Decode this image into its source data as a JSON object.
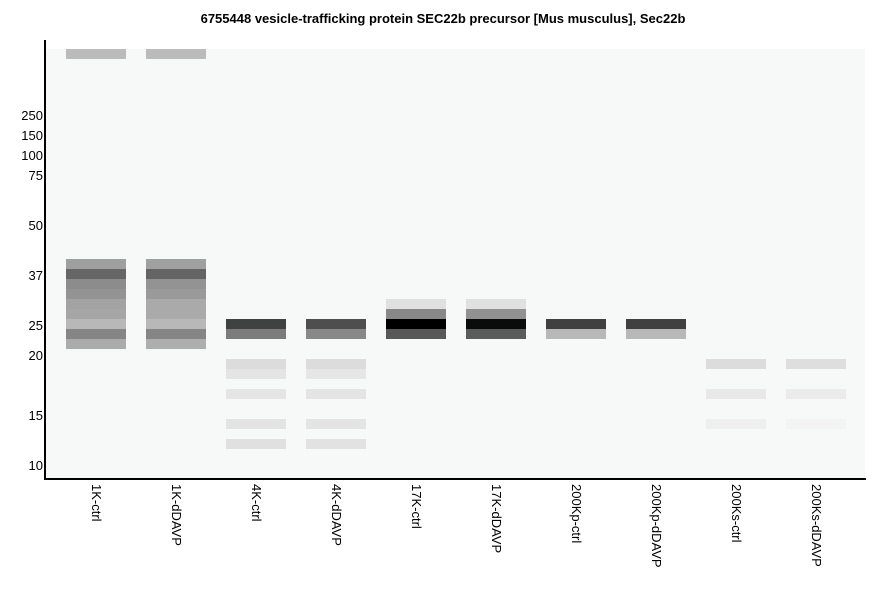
{
  "chart_data": {
    "type": "table",
    "title": "6755448 vesicle-trafficking protein SEC22b precursor [Mus musculus], Sec22b",
    "y_ticks": [
      "250",
      "150",
      "100",
      "75",
      "50",
      "37",
      "25",
      "20",
      "15",
      "10"
    ],
    "y_tick_slots": [
      6.7,
      8.7,
      10.7,
      12.7,
      17.7,
      22.7,
      27.7,
      30.7,
      36.7,
      41.7
    ],
    "lanes": [
      {
        "label": "1K-ctrl",
        "bands": [
          [
            0,
            "#bbbbbb"
          ],
          [
            21,
            "#9f9f9f"
          ],
          [
            22,
            "#666666"
          ],
          [
            23,
            "#8c8c8c"
          ],
          [
            24,
            "#939393"
          ],
          [
            25,
            "#a3a3a3"
          ],
          [
            26,
            "#a6a6a6"
          ],
          [
            27,
            "#b8b8b8"
          ],
          [
            28,
            "#858585"
          ],
          [
            29,
            "#ababab"
          ]
        ]
      },
      {
        "label": "1K-dDAVP",
        "bands": [
          [
            0,
            "#bbbbbb"
          ],
          [
            21,
            "#a0a0a0"
          ],
          [
            22,
            "#646464"
          ],
          [
            23,
            "#939393"
          ],
          [
            24,
            "#9a9a9a"
          ],
          [
            25,
            "#aaaaaa"
          ],
          [
            26,
            "#aaaaaa"
          ],
          [
            27,
            "#b8b8b8"
          ],
          [
            28,
            "#858585"
          ],
          [
            29,
            "#aeaeae"
          ]
        ]
      },
      {
        "label": "4K-ctrl",
        "bands": [
          [
            27,
            "#404242"
          ],
          [
            28,
            "#7c7c7c"
          ],
          [
            31,
            "#dcdcdc"
          ],
          [
            32,
            "#e4e4e4"
          ],
          [
            34,
            "#e5e5e5"
          ],
          [
            37,
            "#e3e3e3"
          ],
          [
            39,
            "#e0e0e0"
          ]
        ]
      },
      {
        "label": "4K-dDAVP",
        "bands": [
          [
            27,
            "#4e4e4e"
          ],
          [
            28,
            "#888888"
          ],
          [
            31,
            "#dcdcdc"
          ],
          [
            32,
            "#e6e6e6"
          ],
          [
            34,
            "#e4e4e4"
          ],
          [
            37,
            "#e4e4e4"
          ],
          [
            39,
            "#e2e2e2"
          ]
        ]
      },
      {
        "label": "17K-ctrl",
        "bands": [
          [
            25,
            "#e0e0e0"
          ],
          [
            26,
            "#888888"
          ],
          [
            27,
            "#000000"
          ],
          [
            28,
            "#585858"
          ]
        ]
      },
      {
        "label": "17K-dDAVP",
        "bands": [
          [
            25,
            "#e0e0e0"
          ],
          [
            26,
            "#919191"
          ],
          [
            27,
            "#0a0c0b"
          ],
          [
            28,
            "#5a5c5b"
          ]
        ]
      },
      {
        "label": "200Kp-ctrl",
        "bands": [
          [
            27,
            "#404040"
          ],
          [
            28,
            "#b8b8b8"
          ]
        ]
      },
      {
        "label": "200Kp-dDAVP",
        "bands": [
          [
            27,
            "#404040"
          ],
          [
            28,
            "#b8b8b8"
          ]
        ]
      },
      {
        "label": "200Ks-ctrl",
        "bands": [
          [
            31,
            "#dcdcdc"
          ],
          [
            34,
            "#e8e8e8"
          ],
          [
            37,
            "#efefef"
          ]
        ]
      },
      {
        "label": "200Ks-dDAVP",
        "bands": [
          [
            31,
            "#dedede"
          ],
          [
            34,
            "#ebebeb"
          ],
          [
            37,
            "#f3f3f3"
          ]
        ]
      }
    ]
  }
}
